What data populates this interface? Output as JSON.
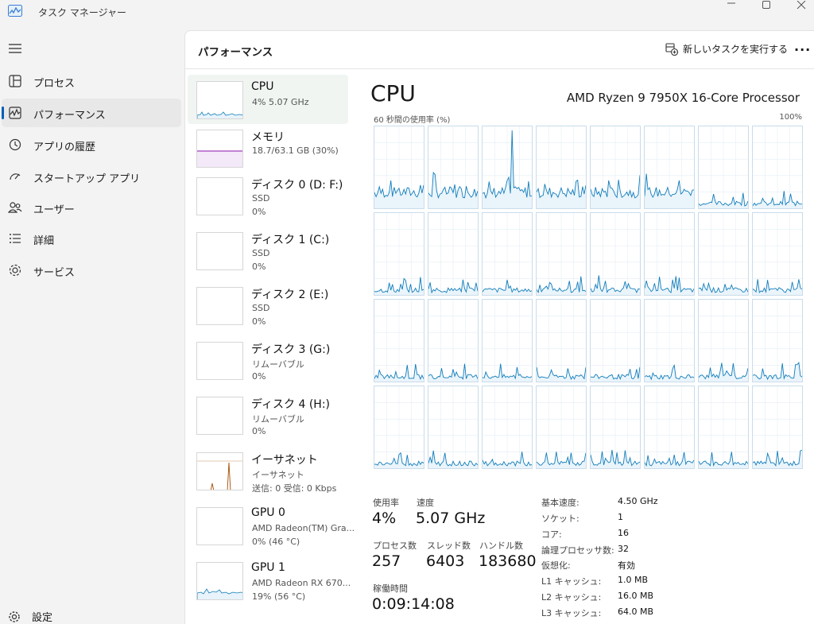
{
  "window": {
    "title": "タスク マネージャー"
  },
  "nav": {
    "items": [
      {
        "label": "プロセス",
        "icon": "processes-icon"
      },
      {
        "label": "パフォーマンス",
        "icon": "performance-icon",
        "active": true
      },
      {
        "label": "アプリの履歴",
        "icon": "history-icon"
      },
      {
        "label": "スタートアップ アプリ",
        "icon": "startup-icon"
      },
      {
        "label": "ユーザー",
        "icon": "users-icon"
      },
      {
        "label": "詳細",
        "icon": "details-icon"
      },
      {
        "label": "サービス",
        "icon": "services-icon"
      }
    ],
    "settings": "設定"
  },
  "header": {
    "title": "パフォーマンス",
    "new_task": "新しいタスクを実行する",
    "more": "···"
  },
  "devices": [
    {
      "name": "CPU",
      "lines": [
        "4%  5.07 GHz"
      ]
    },
    {
      "name": "メモリ",
      "lines": [
        "18.7/63.1 GB (30%)"
      ]
    },
    {
      "name": "ディスク 0 (D: F:)",
      "lines": [
        "SSD",
        "0%"
      ]
    },
    {
      "name": "ディスク 1 (C:)",
      "lines": [
        "SSD",
        "0%"
      ]
    },
    {
      "name": "ディスク 2 (E:)",
      "lines": [
        "SSD",
        "0%"
      ]
    },
    {
      "name": "ディスク 3 (G:)",
      "lines": [
        "リムーバブル",
        "0%"
      ]
    },
    {
      "name": "ディスク 4 (H:)",
      "lines": [
        "リムーバブル",
        "0%"
      ]
    },
    {
      "name": "イーサネット",
      "lines": [
        "イーサネット",
        "送信: 0  受信: 0 Kbps"
      ]
    },
    {
      "name": "GPU 0",
      "lines": [
        "AMD Radeon(TM) Gra...",
        "0%  (46 °C)"
      ]
    },
    {
      "name": "GPU 1",
      "lines": [
        "AMD Radeon RX 670...",
        "19%  (56 °C)"
      ]
    }
  ],
  "cpu": {
    "title": "CPU",
    "model": "AMD Ryzen 9 7950X 16-Core Processor",
    "graph_label": "60 秒間の使用率 (%)",
    "graph_max": "100%",
    "stats": {
      "usage_label": "使用率",
      "usage": "4%",
      "speed_label": "速度",
      "speed": "5.07 GHz",
      "processes_label": "プロセス数",
      "processes": "257",
      "threads_label": "スレッド数",
      "threads": "6403",
      "handles_label": "ハンドル数",
      "handles": "183680",
      "uptime_label": "稼働時間",
      "uptime": "0:09:14:08"
    },
    "specs": [
      {
        "k": "基本速度:",
        "v": "4.50 GHz"
      },
      {
        "k": "ソケット:",
        "v": "1"
      },
      {
        "k": "コア:",
        "v": "16"
      },
      {
        "k": "論理プロセッサ数:",
        "v": "32"
      },
      {
        "k": "仮想化:",
        "v": "有効"
      },
      {
        "k": "L1 キャッシュ:",
        "v": "1.0 MB"
      },
      {
        "k": "L2 キャッシュ:",
        "v": "16.0 MB"
      },
      {
        "k": "L3 キャッシュ:",
        "v": "64.0 MB"
      }
    ]
  },
  "colors": {
    "cpu": "#117dbb",
    "memory": "#8b12ae",
    "ethernet": "#a74f01",
    "accent": "#005fb8"
  }
}
